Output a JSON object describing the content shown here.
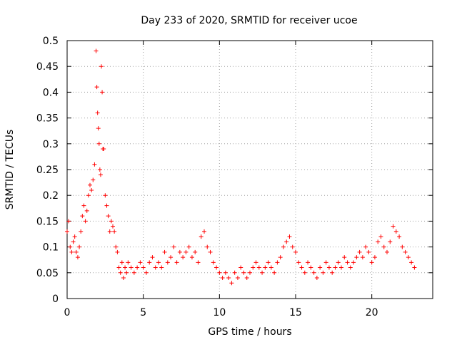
{
  "chart_data": {
    "type": "scatter",
    "title": "Day 233 of 2020, SRMTID for receiver ucoe",
    "xlabel": "GPS time / hours",
    "ylabel": "SRMTID / TECUs",
    "xlim": [
      0,
      24
    ],
    "ylim": [
      0,
      0.5
    ],
    "xticks": [
      0,
      5,
      10,
      15,
      20
    ],
    "xtick_labels": [
      "0",
      "5",
      "10",
      "15",
      "20"
    ],
    "yticks": [
      0,
      0.05,
      0.1,
      0.15,
      0.2,
      0.25,
      0.3,
      0.35,
      0.4,
      0.45,
      0.5
    ],
    "ytick_labels": [
      "0",
      "0.05",
      "0.1",
      "0.15",
      "0.2",
      "0.25",
      "0.3",
      "0.35",
      "0.4",
      "0.45",
      "0.5"
    ],
    "grid": true,
    "marker": "+",
    "color": "#ff0000",
    "series": [
      {
        "name": "SRMTID",
        "x": [
          0.0,
          0.1,
          0.2,
          0.3,
          0.4,
          0.5,
          0.6,
          0.7,
          0.8,
          0.9,
          1.0,
          1.1,
          1.2,
          1.3,
          1.4,
          1.5,
          1.6,
          1.7,
          1.8,
          1.9,
          1.95,
          2.0,
          2.05,
          2.1,
          2.15,
          2.2,
          2.25,
          2.3,
          2.35,
          2.4,
          2.5,
          2.6,
          2.7,
          2.8,
          2.9,
          3.0,
          3.1,
          3.2,
          3.3,
          3.4,
          3.5,
          3.6,
          3.7,
          3.8,
          3.9,
          4.0,
          4.2,
          4.4,
          4.6,
          4.8,
          5.0,
          5.2,
          5.4,
          5.6,
          5.8,
          6.0,
          6.2,
          6.4,
          6.6,
          6.8,
          7.0,
          7.2,
          7.4,
          7.6,
          7.8,
          8.0,
          8.2,
          8.4,
          8.6,
          8.8,
          9.0,
          9.2,
          9.4,
          9.6,
          9.8,
          10.0,
          10.2,
          10.4,
          10.6,
          10.8,
          11.0,
          11.2,
          11.4,
          11.6,
          11.8,
          12.0,
          12.2,
          12.4,
          12.6,
          12.8,
          13.0,
          13.2,
          13.4,
          13.6,
          13.8,
          14.0,
          14.2,
          14.4,
          14.6,
          14.8,
          15.0,
          15.2,
          15.4,
          15.6,
          15.8,
          16.0,
          16.2,
          16.4,
          16.6,
          16.8,
          17.0,
          17.2,
          17.4,
          17.6,
          17.8,
          18.0,
          18.2,
          18.4,
          18.6,
          18.8,
          19.0,
          19.2,
          19.4,
          19.6,
          19.8,
          20.0,
          20.2,
          20.4,
          20.6,
          20.8,
          21.0,
          21.2,
          21.4,
          21.6,
          21.8,
          22.0,
          22.2,
          22.4,
          22.6,
          22.8
        ],
        "y": [
          0.13,
          0.15,
          0.1,
          0.09,
          0.11,
          0.12,
          0.09,
          0.08,
          0.1,
          0.13,
          0.16,
          0.18,
          0.15,
          0.17,
          0.2,
          0.22,
          0.21,
          0.23,
          0.26,
          0.48,
          0.41,
          0.36,
          0.33,
          0.3,
          0.25,
          0.24,
          0.45,
          0.4,
          0.29,
          0.29,
          0.2,
          0.18,
          0.16,
          0.13,
          0.15,
          0.14,
          0.13,
          0.1,
          0.09,
          0.06,
          0.05,
          0.07,
          0.04,
          0.06,
          0.05,
          0.07,
          0.06,
          0.05,
          0.06,
          0.07,
          0.06,
          0.05,
          0.07,
          0.08,
          0.06,
          0.07,
          0.06,
          0.09,
          0.07,
          0.08,
          0.1,
          0.07,
          0.09,
          0.08,
          0.09,
          0.1,
          0.08,
          0.09,
          0.07,
          0.12,
          0.13,
          0.1,
          0.09,
          0.07,
          0.06,
          0.05,
          0.04,
          0.05,
          0.04,
          0.03,
          0.05,
          0.04,
          0.06,
          0.05,
          0.04,
          0.05,
          0.06,
          0.07,
          0.06,
          0.05,
          0.06,
          0.07,
          0.06,
          0.05,
          0.07,
          0.08,
          0.1,
          0.11,
          0.12,
          0.1,
          0.09,
          0.07,
          0.06,
          0.05,
          0.07,
          0.06,
          0.05,
          0.04,
          0.06,
          0.05,
          0.07,
          0.06,
          0.05,
          0.06,
          0.07,
          0.06,
          0.08,
          0.07,
          0.06,
          0.07,
          0.08,
          0.09,
          0.08,
          0.1,
          0.09,
          0.07,
          0.08,
          0.11,
          0.12,
          0.1,
          0.09,
          0.11,
          0.14,
          0.13,
          0.12,
          0.1,
          0.09,
          0.08,
          0.07,
          0.06
        ]
      }
    ]
  }
}
